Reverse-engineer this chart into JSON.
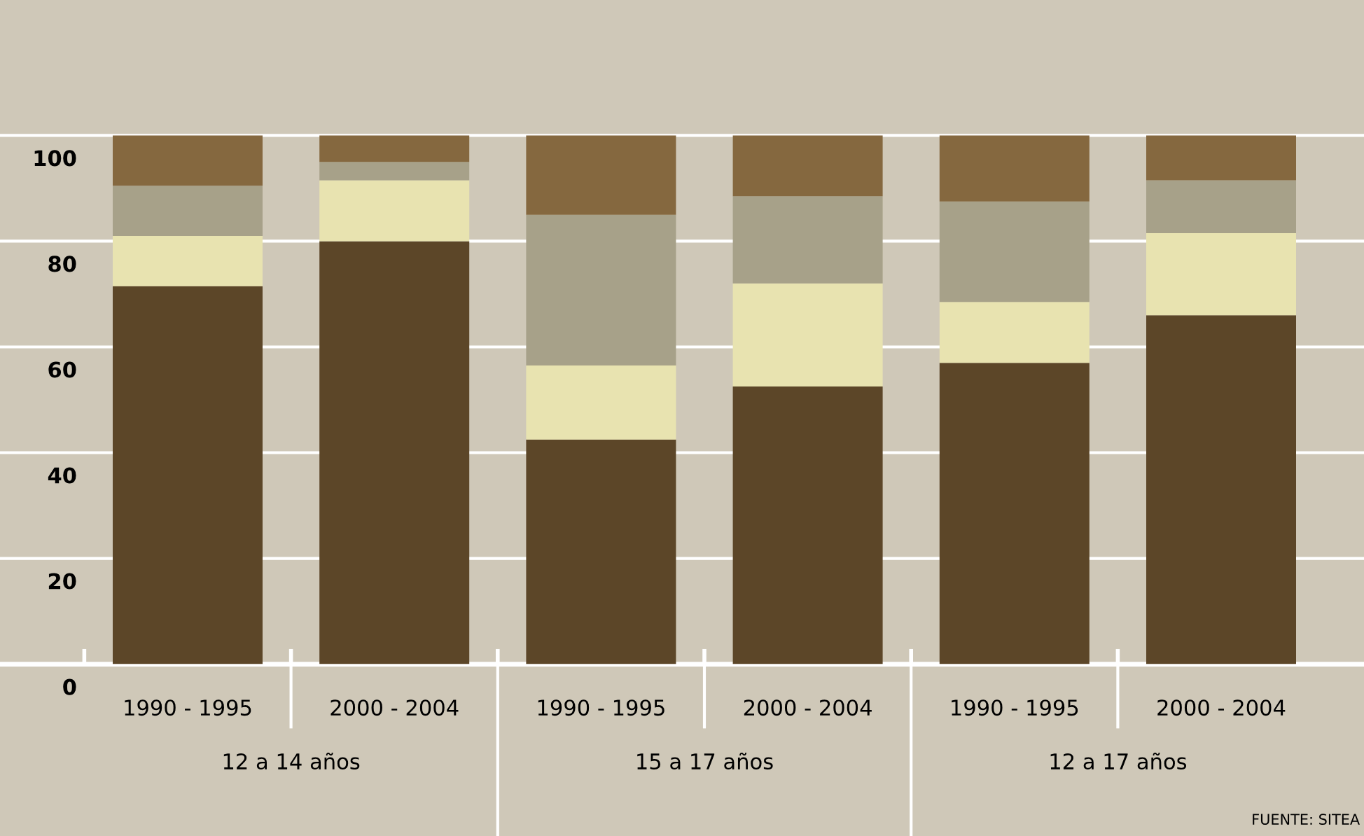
{
  "chart_data": {
    "type": "bar",
    "stacked": true,
    "categories": [
      "1990 - 1995",
      "2000 - 2004",
      "1990 - 1995",
      "2000 - 2004",
      "1990 - 1995",
      "2000 - 2004"
    ],
    "series": [
      {
        "color": "#5c4628",
        "values": [
          71.5,
          80,
          42.5,
          52.5,
          57,
          66
        ]
      },
      {
        "color": "#e8e3b0",
        "values": [
          9.5,
          11.5,
          14,
          19.5,
          11.5,
          15.5
        ]
      },
      {
        "color": "#a7a189",
        "values": [
          9.5,
          3.5,
          28.5,
          16.5,
          19,
          10
        ]
      },
      {
        "color": "#85683f",
        "values": [
          9.5,
          5,
          15,
          11.5,
          12.5,
          8.5
        ]
      }
    ],
    "ylim": [
      0,
      125
    ],
    "yticks": [
      0,
      20,
      40,
      60,
      80,
      100
    ],
    "grid": "y",
    "legend": false,
    "annotations": [
      "12 a 14 años",
      "15 a 17 años",
      "12 a 17 años",
      "FUENTE: SITEA"
    ]
  }
}
